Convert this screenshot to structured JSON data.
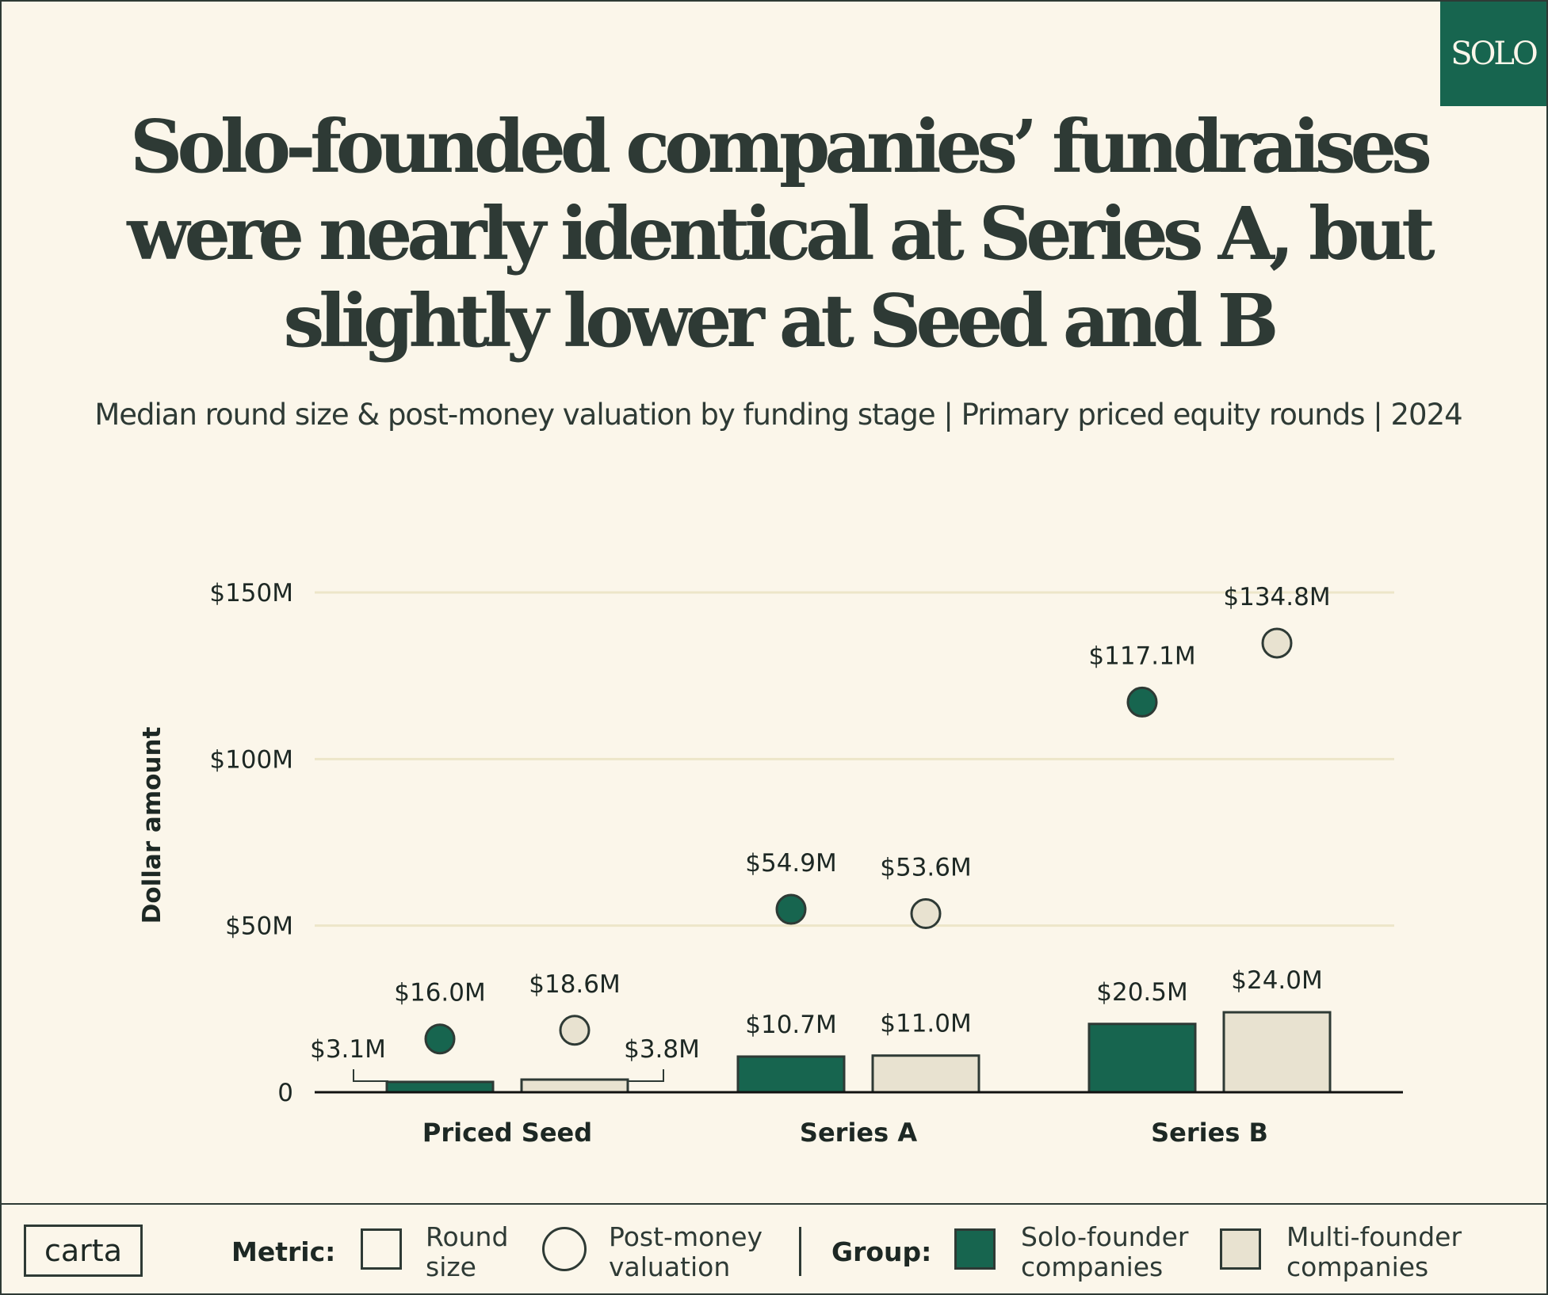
{
  "header": {
    "badge": "SOLO",
    "title": "Solo-founded companies’ fundraises were nearly identical at Series A, but slightly lower at Seed and B",
    "subtitle": "Median round size & post-money valuation by funding stage | Primary priced equity rounds | 2024"
  },
  "colors": {
    "solo": "#17654f",
    "multi": "#e8e2d0",
    "ink": "#2e3a35",
    "grid": "#ede6c9",
    "background": "#fbf6ea"
  },
  "chart_data": {
    "type": "bar",
    "ylabel": "Dollar amount",
    "ylim": [
      0,
      150
    ],
    "yticks": [
      {
        "value": 0,
        "label": "0"
      },
      {
        "value": 50,
        "label": "$50M"
      },
      {
        "value": 100,
        "label": "$100M"
      },
      {
        "value": 150,
        "label": "$150M"
      }
    ],
    "categories": [
      "Priced Seed",
      "Series A",
      "Series B"
    ],
    "series": [
      {
        "name": "Solo-founder companies",
        "metric": "Round size",
        "mark": "bar",
        "values": [
          3.1,
          10.7,
          20.5
        ],
        "labels": [
          "$3.1M",
          "$10.7M",
          "$20.5M"
        ]
      },
      {
        "name": "Multi-founder companies",
        "metric": "Round size",
        "mark": "bar",
        "values": [
          3.8,
          11.0,
          24.0
        ],
        "labels": [
          "$3.8M",
          "$11.0M",
          "$24.0M"
        ]
      },
      {
        "name": "Solo-founder companies",
        "metric": "Post-money valuation",
        "mark": "dot",
        "values": [
          16.0,
          54.9,
          117.1
        ],
        "labels": [
          "$16.0M",
          "$54.9M",
          "$117.1M"
        ]
      },
      {
        "name": "Multi-founder companies",
        "metric": "Post-money valuation",
        "mark": "dot",
        "values": [
          18.6,
          53.6,
          134.8
        ],
        "labels": [
          "$18.6M",
          "$53.6M",
          "$134.8M"
        ]
      }
    ]
  },
  "legend": {
    "brand": "carta",
    "metric_label": "Metric:",
    "round_size_line1": "Round",
    "round_size_line2": "size",
    "valuation_line1": "Post-money",
    "valuation_line2": "valuation",
    "group_label": "Group:",
    "solo_line1": "Solo-founder",
    "solo_line2": "companies",
    "multi_line1": "Multi-founder",
    "multi_line2": "companies"
  }
}
